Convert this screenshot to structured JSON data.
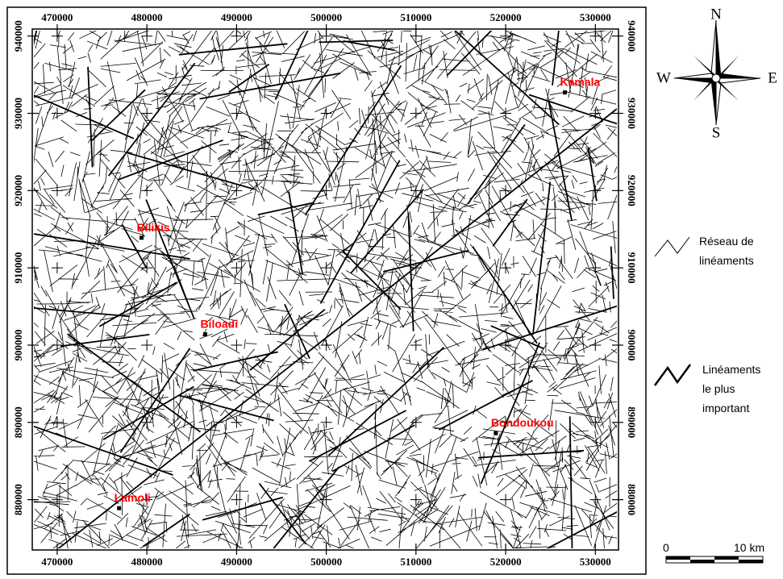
{
  "map": {
    "x_ticks": [
      470000,
      480000,
      490000,
      500000,
      510000,
      520000,
      530000
    ],
    "y_ticks": [
      940000,
      930000,
      920000,
      910000,
      900000,
      890000,
      880000
    ],
    "xlim": [
      467400,
      532400
    ],
    "ylim": [
      873700,
      940700
    ],
    "towns": [
      {
        "name": "Kamala",
        "x": 526600,
        "y": 932700
      },
      {
        "name": "Bilikis",
        "x": 479400,
        "y": 913900
      },
      {
        "name": "Biloadi",
        "x": 486500,
        "y": 901400
      },
      {
        "name": "Bondoukou",
        "x": 518900,
        "y": 888600
      },
      {
        "name": "Lamoli",
        "x": 476900,
        "y": 878900
      }
    ],
    "compass": {
      "n": "N",
      "s": "S",
      "w": "W",
      "e": "E"
    },
    "legend": [
      {
        "lines": [
          "Réseau de",
          "linéaments"
        ]
      },
      {
        "lines": [
          "Linéaments",
          "le plus",
          "important"
        ]
      }
    ],
    "scale_bar": {
      "start": "0",
      "end": "10 km"
    }
  }
}
